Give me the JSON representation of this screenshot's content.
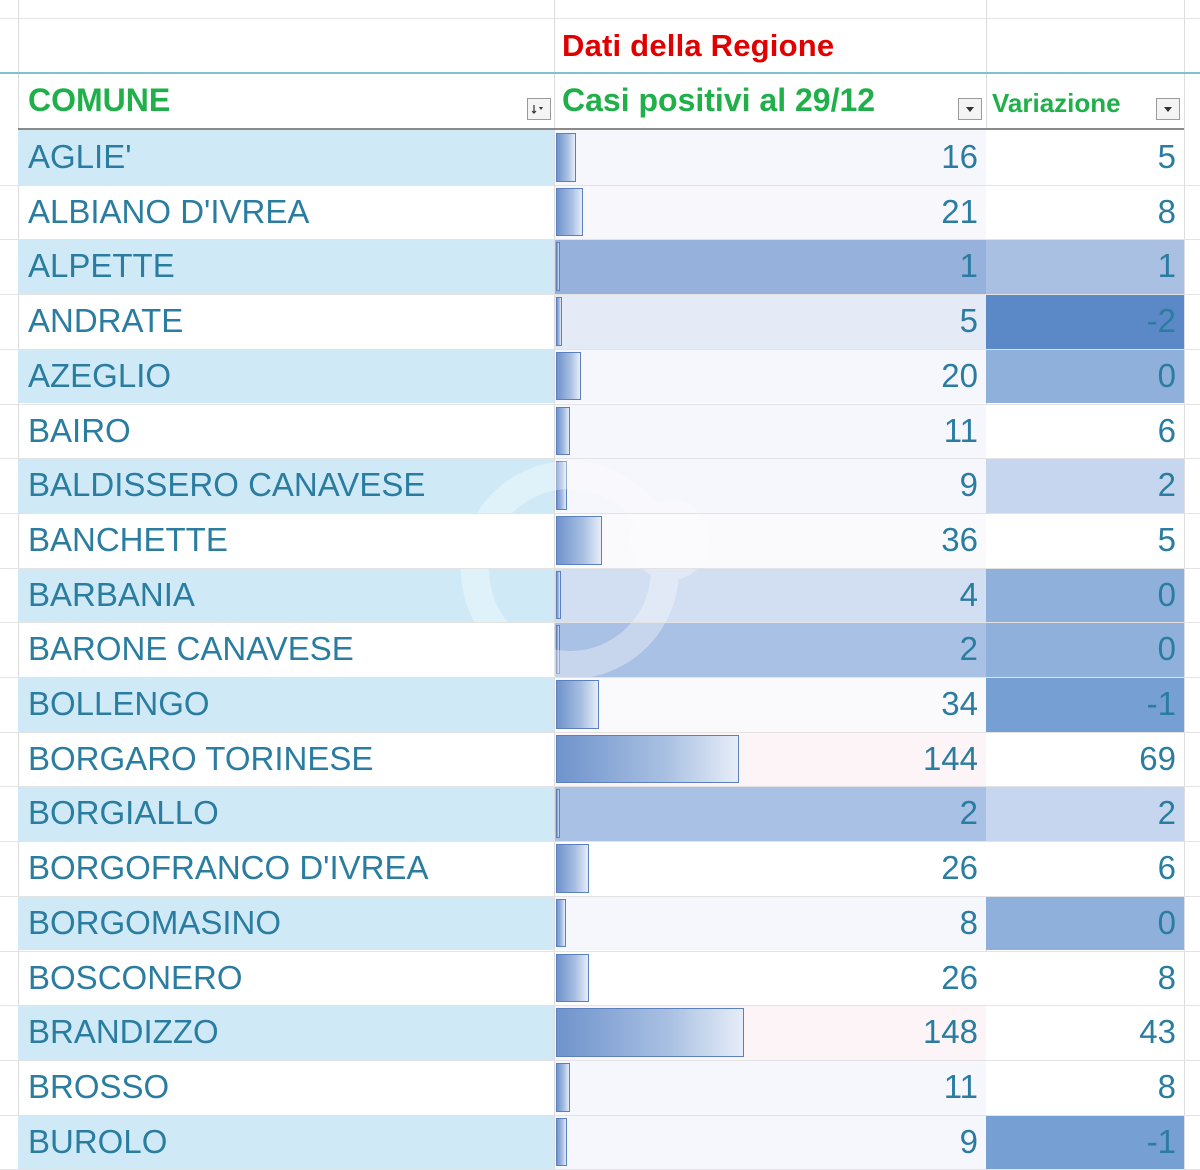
{
  "header": {
    "region_title": "Dati della Regione",
    "col_comune": "COMUNE",
    "col_casi": "Casi positivi al 29/12",
    "col_variazione": "Variazione"
  },
  "colors": {
    "title_red": "#e00000",
    "header_green": "#1fb04a",
    "text_blue": "#2a7da0",
    "row_band": "#cfeaf6",
    "bar_blue": "#6f93cc"
  },
  "rows": [
    {
      "comune": "AGLIE'",
      "casi": "16",
      "variazione": "5",
      "casi_bg": "#f6f7fc",
      "var_bg": "#ffffff"
    },
    {
      "comune": "ALBIANO D'IVREA",
      "casi": "21",
      "variazione": "8",
      "casi_bg": "#f8f8fc",
      "var_bg": "#ffffff"
    },
    {
      "comune": "ALPETTE",
      "casi": "1",
      "variazione": "1",
      "casi_bg": "#95b1dc",
      "var_bg": "#a9c0e3"
    },
    {
      "comune": "ANDRATE",
      "casi": "5",
      "variazione": "-2",
      "casi_bg": "#e4ebf6",
      "var_bg": "#5b89c8"
    },
    {
      "comune": "AZEGLIO",
      "casi": "20",
      "variazione": "0",
      "casi_bg": "#f6f7fc",
      "var_bg": "#8fb0db"
    },
    {
      "comune": "BAIRO",
      "casi": "11",
      "variazione": "6",
      "casi_bg": "#f6f7fc",
      "var_bg": "#ffffff"
    },
    {
      "comune": "BALDISSERO CANAVESE",
      "casi": "9",
      "variazione": "2",
      "casi_bg": "#f6f7fc",
      "var_bg": "#c6d6ee"
    },
    {
      "comune": "BANCHETTE",
      "casi": "36",
      "variazione": "5",
      "casi_bg": "#fafafc",
      "var_bg": "#ffffff"
    },
    {
      "comune": "BARBANIA",
      "casi": "4",
      "variazione": "0",
      "casi_bg": "#d2def2",
      "var_bg": "#8fb0db"
    },
    {
      "comune": "BARONE CANAVESE",
      "casi": "2",
      "variazione": "0",
      "casi_bg": "#a9c1e4",
      "var_bg": "#8fb0db"
    },
    {
      "comune": "BOLLENGO",
      "casi": "34",
      "variazione": "-1",
      "casi_bg": "#fafafc",
      "var_bg": "#76a0d4"
    },
    {
      "comune": "BORGARO TORINESE",
      "casi": "144",
      "variazione": "69",
      "casi_bg": "#fcf4f6",
      "var_bg": "#ffffff"
    },
    {
      "comune": "BORGIALLO",
      "casi": "2",
      "variazione": "2",
      "casi_bg": "#a9c1e4",
      "var_bg": "#c6d6ee"
    },
    {
      "comune": "BORGOFRANCO D'IVREA",
      "casi": "26",
      "variazione": "6",
      "casi_bg": "#ffffff",
      "var_bg": "#ffffff"
    },
    {
      "comune": "BORGOMASINO",
      "casi": "8",
      "variazione": "0",
      "casi_bg": "#f6f7fc",
      "var_bg": "#8fb0db"
    },
    {
      "comune": "BOSCONERO",
      "casi": "26",
      "variazione": "8",
      "casi_bg": "#ffffff",
      "var_bg": "#ffffff"
    },
    {
      "comune": "BRANDIZZO",
      "casi": "148",
      "variazione": "43",
      "casi_bg": "#fcf4f6",
      "var_bg": "#ffffff"
    },
    {
      "comune": "BROSSO",
      "casi": "11",
      "variazione": "8",
      "casi_bg": "#f6f7fc",
      "var_bg": "#ffffff"
    },
    {
      "comune": "BUROLO",
      "casi": "9",
      "variazione": "-1",
      "casi_bg": "#f6f7fc",
      "var_bg": "#76a0d4"
    }
  ]
}
